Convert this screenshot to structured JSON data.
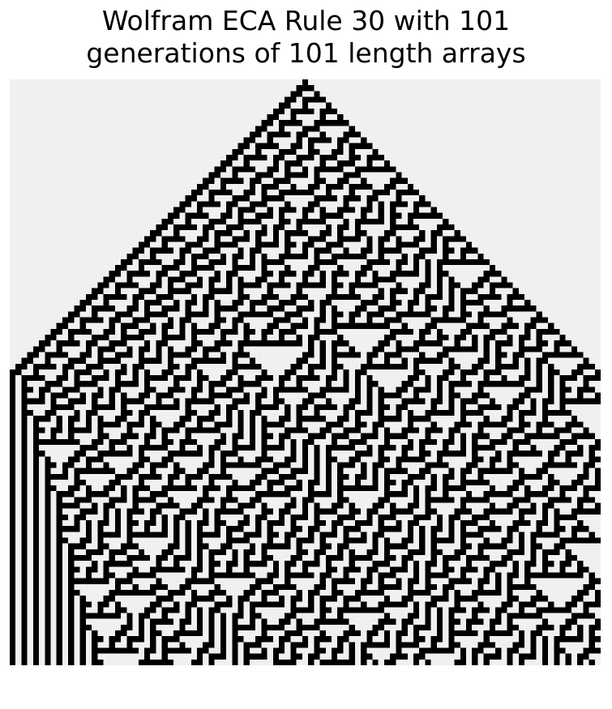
{
  "figure": {
    "title_line1": "Wolfram ECA Rule 30 with 101",
    "title_line2": "generations of 101 length arrays"
  },
  "chart_data": {
    "type": "heatmap",
    "title": "Wolfram ECA Rule 30 with 101 generations of 101 length arrays",
    "xlabel": "",
    "ylabel": "",
    "axes_visible": false,
    "grid": false,
    "rule": 30,
    "generations": 101,
    "array_length": 101,
    "initial_state": "single live cell at center index 50",
    "boundary": "fixed dead cells outside the array",
    "colormap": {
      "alive": "#000000",
      "dead": "#f0f0f0"
    }
  }
}
